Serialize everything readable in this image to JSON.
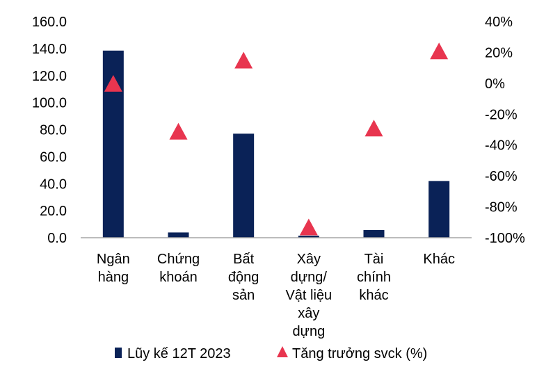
{
  "chart_data": {
    "type": "bar+scatter",
    "categories": [
      [
        "Ngân",
        "hàng"
      ],
      [
        "Chứng",
        "khoán"
      ],
      [
        "Bất",
        "động",
        "sản"
      ],
      [
        "Xây",
        "dựng/",
        "Vật liệu",
        "xây",
        "dựng"
      ],
      [
        "Tài",
        "chính",
        "khác"
      ],
      [
        "Khác"
      ]
    ],
    "series": [
      {
        "name": "Lũy kế 12T 2023",
        "kind": "bar",
        "axis": "left",
        "values": [
          138.5,
          3.9,
          77.0,
          1.5,
          5.7,
          42.0
        ],
        "color": "#0a2257"
      },
      {
        "name": "Tăng trưởng svck (%)",
        "kind": "marker-triangle",
        "axis": "right",
        "values": [
          0,
          -31,
          15,
          -93,
          -29,
          21
        ],
        "color": "#e8354f"
      }
    ],
    "y_left": {
      "min": 0,
      "max": 160,
      "step": 20,
      "ticks": [
        "0.0",
        "20.0",
        "40.0",
        "60.0",
        "80.0",
        "100.0",
        "120.0",
        "140.0",
        "160.0"
      ]
    },
    "y_right": {
      "min": -100,
      "max": 40,
      "step": 20,
      "ticks": [
        "-100%",
        "-80%",
        "-60%",
        "-40%",
        "-20%",
        "0%",
        "20%",
        "40%"
      ]
    },
    "grid": false,
    "legend_position": "bottom"
  }
}
